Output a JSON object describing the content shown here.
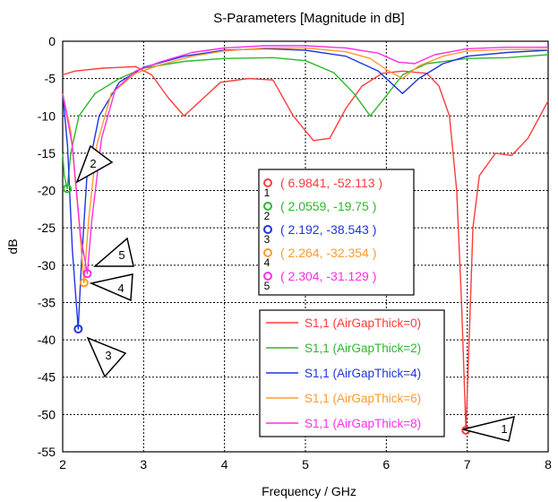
{
  "chart_data": {
    "type": "line",
    "title": "S-Parameters [Magnitude in dB]",
    "xlabel": "Frequency / GHz",
    "ylabel": "dB",
    "xlim": [
      2,
      8
    ],
    "ylim": [
      -55,
      0
    ],
    "xticks": [
      "2",
      "3",
      "4",
      "5",
      "6",
      "7",
      "8"
    ],
    "yticks": [
      "0",
      "-5",
      "-10",
      "-15",
      "-20",
      "-25",
      "-30",
      "-35",
      "-40",
      "-45",
      "-50",
      "-55"
    ],
    "grid": true,
    "legend_position": "bottom-center",
    "series": [
      {
        "name": "S1,1 (AirGapThick=0)",
        "color": "#ff3b3b",
        "points": [
          [
            2,
            -4.5
          ],
          [
            2.15,
            -4
          ],
          [
            2.5,
            -3.6
          ],
          [
            2.9,
            -3.4
          ],
          [
            3.1,
            -4.5
          ],
          [
            3.3,
            -7.5
          ],
          [
            3.5,
            -10
          ],
          [
            3.7,
            -8
          ],
          [
            3.95,
            -5.5
          ],
          [
            4.3,
            -5
          ],
          [
            4.6,
            -5.2
          ],
          [
            4.85,
            -10
          ],
          [
            5.1,
            -13.3
          ],
          [
            5.3,
            -13
          ],
          [
            5.5,
            -9
          ],
          [
            5.7,
            -6
          ],
          [
            5.95,
            -4.3
          ],
          [
            6.2,
            -4
          ],
          [
            6.5,
            -4.3
          ],
          [
            6.65,
            -6
          ],
          [
            6.78,
            -10
          ],
          [
            6.87,
            -20
          ],
          [
            6.93,
            -35
          ],
          [
            6.9841,
            -52.113
          ],
          [
            7.03,
            -38
          ],
          [
            7.07,
            -25
          ],
          [
            7.15,
            -18
          ],
          [
            7.35,
            -15
          ],
          [
            7.55,
            -15.3
          ],
          [
            7.75,
            -13
          ],
          [
            8,
            -8
          ]
        ]
      },
      {
        "name": "S1,1 (AirGapThick=2)",
        "color": "#2db82d",
        "points": [
          [
            2,
            -15
          ],
          [
            2.02,
            -18
          ],
          [
            2.0559,
            -19.75
          ],
          [
            2.1,
            -15
          ],
          [
            2.2,
            -10
          ],
          [
            2.4,
            -7
          ],
          [
            2.7,
            -5
          ],
          [
            3,
            -3.6
          ],
          [
            3.5,
            -2.7
          ],
          [
            4,
            -2.3
          ],
          [
            4.6,
            -2.2
          ],
          [
            5,
            -2.6
          ],
          [
            5.35,
            -4.2
          ],
          [
            5.6,
            -7
          ],
          [
            5.8,
            -10
          ],
          [
            5.95,
            -8
          ],
          [
            6.2,
            -4.5
          ],
          [
            6.5,
            -3
          ],
          [
            7,
            -2.3
          ],
          [
            7.5,
            -2.2
          ],
          [
            8,
            -1.8
          ]
        ]
      },
      {
        "name": "S1,1 (AirGapThick=4)",
        "color": "#1f35e0",
        "points": [
          [
            2,
            -7
          ],
          [
            2.06,
            -14
          ],
          [
            2.12,
            -28
          ],
          [
            2.192,
            -38.543
          ],
          [
            2.23,
            -30
          ],
          [
            2.3,
            -18
          ],
          [
            2.45,
            -10
          ],
          [
            2.7,
            -5.5
          ],
          [
            3,
            -3.5
          ],
          [
            3.5,
            -2
          ],
          [
            4,
            -1.2
          ],
          [
            4.5,
            -1
          ],
          [
            5,
            -1.2
          ],
          [
            5.5,
            -2
          ],
          [
            5.9,
            -4
          ],
          [
            6.2,
            -7
          ],
          [
            6.4,
            -5
          ],
          [
            6.7,
            -3
          ],
          [
            7,
            -2
          ],
          [
            7.5,
            -1.5
          ],
          [
            8,
            -1.2
          ]
        ]
      },
      {
        "name": "S1,1 (AirGapThick=6)",
        "color": "#ff9a2e",
        "points": [
          [
            2,
            -7
          ],
          [
            2.1,
            -12
          ],
          [
            2.2,
            -24
          ],
          [
            2.264,
            -32.354
          ],
          [
            2.32,
            -24
          ],
          [
            2.42,
            -14
          ],
          [
            2.6,
            -7
          ],
          [
            2.9,
            -4.3
          ],
          [
            3.2,
            -3.2
          ],
          [
            3.6,
            -2
          ],
          [
            4,
            -1.3
          ],
          [
            4.5,
            -0.9
          ],
          [
            5,
            -0.9
          ],
          [
            5.5,
            -1.4
          ],
          [
            5.8,
            -2.3
          ],
          [
            6,
            -3.8
          ],
          [
            6.2,
            -5
          ],
          [
            6.4,
            -3.3
          ],
          [
            6.7,
            -2
          ],
          [
            7,
            -1.3
          ],
          [
            7.5,
            -1.1
          ],
          [
            8,
            -1.1
          ]
        ]
      },
      {
        "name": "S1,1 (AirGapThick=8)",
        "color": "#ff2ee6",
        "points": [
          [
            2,
            -7
          ],
          [
            2.12,
            -14
          ],
          [
            2.22,
            -26
          ],
          [
            2.304,
            -31.129
          ],
          [
            2.36,
            -24
          ],
          [
            2.48,
            -13
          ],
          [
            2.65,
            -6.5
          ],
          [
            2.9,
            -4
          ],
          [
            3.2,
            -2.8
          ],
          [
            3.6,
            -1.5
          ],
          [
            4,
            -0.9
          ],
          [
            4.5,
            -0.6
          ],
          [
            5,
            -0.6
          ],
          [
            5.5,
            -0.9
          ],
          [
            5.9,
            -1.6
          ],
          [
            6.15,
            -2.8
          ],
          [
            6.35,
            -3
          ],
          [
            6.6,
            -1.8
          ],
          [
            7,
            -1
          ],
          [
            7.5,
            -0.8
          ],
          [
            8,
            -0.8
          ]
        ]
      }
    ],
    "markers": [
      {
        "id": "1",
        "x": 6.9841,
        "y": -52.113,
        "readout": "( 6.9841, -52.113 )",
        "color": "#ff3b3b"
      },
      {
        "id": "2",
        "x": 2.0559,
        "y": -19.75,
        "readout": "( 2.0559, -19.75 )",
        "color": "#2db82d"
      },
      {
        "id": "3",
        "x": 2.192,
        "y": -38.543,
        "readout": "( 2.192, -38.543 )",
        "color": "#1f35e0"
      },
      {
        "id": "4",
        "x": 2.264,
        "y": -32.354,
        "readout": "( 2.264, -32.354 )",
        "color": "#ff9a2e"
      },
      {
        "id": "5",
        "x": 2.304,
        "y": -31.129,
        "readout": "( 2.304, -31.129 )",
        "color": "#ff2ee6"
      }
    ]
  }
}
